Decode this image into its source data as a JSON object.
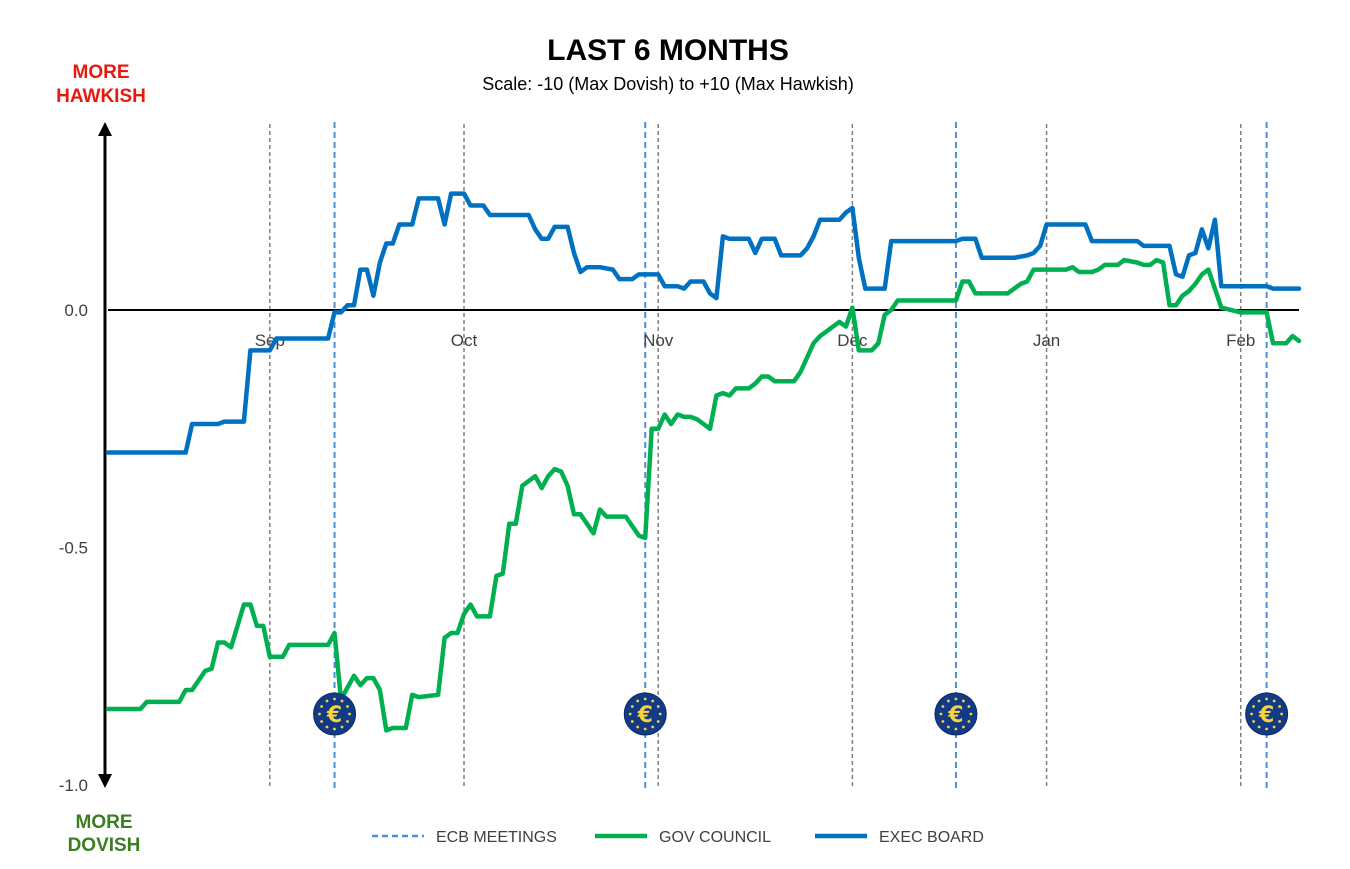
{
  "chart_data": {
    "type": "line",
    "title": "LAST 6 MONTHS",
    "subtitle": "Scale: -10 (Max Dovish)  to +10 (Max Hawkish)",
    "top_label": [
      "MORE",
      "HAWKISH"
    ],
    "bottom_label": [
      "MORE",
      "DOVISH"
    ],
    "colors": {
      "hawkish": "#e8190f",
      "dovish": "#3a7d22",
      "gov_council": "#00b050",
      "exec_board": "#0070c0",
      "ecb_meetings": "#4a90d9",
      "month_gridline": "#7f7f7f",
      "zero_line": "#000000"
    },
    "x_range": [
      0,
      184
    ],
    "ylim": [
      -1.0,
      0.4
    ],
    "y_ticks": [
      {
        "value": 0.0,
        "label": "0.0"
      },
      {
        "value": -0.5,
        "label": "-0.5"
      },
      {
        "value": -1.0,
        "label": "-1.0"
      }
    ],
    "month_ticks": [
      {
        "day": 25,
        "label": "Sep"
      },
      {
        "day": 55,
        "label": "Oct"
      },
      {
        "day": 85,
        "label": "Nov"
      },
      {
        "day": 115,
        "label": "Dec"
      },
      {
        "day": 145,
        "label": "Jan"
      },
      {
        "day": 175,
        "label": "Feb"
      }
    ],
    "ecb_meetings": [
      35,
      83,
      131,
      179
    ],
    "ecb_meeting_icon": "euro-coin-icon",
    "legend": [
      {
        "key": "ecb_meetings",
        "label": "ECB MEETINGS",
        "style": "dashed"
      },
      {
        "key": "gov_council",
        "label": "GOV COUNCIL",
        "style": "solid"
      },
      {
        "key": "exec_board",
        "label": "EXEC BOARD",
        "style": "solid"
      }
    ],
    "series": [
      {
        "key": "exec_board",
        "name": "EXEC BOARD",
        "points": [
          [
            0,
            -0.3
          ],
          [
            12,
            -0.3
          ],
          [
            13,
            -0.24
          ],
          [
            17,
            -0.24
          ],
          [
            18,
            -0.235
          ],
          [
            21,
            -0.235
          ],
          [
            22,
            -0.085
          ],
          [
            25,
            -0.085
          ],
          [
            26,
            -0.06
          ],
          [
            34,
            -0.06
          ],
          [
            35,
            -0.005
          ],
          [
            36,
            -0.005
          ],
          [
            37,
            0.01
          ],
          [
            38,
            0.01
          ],
          [
            39,
            0.085
          ],
          [
            40,
            0.085
          ],
          [
            41,
            0.03
          ],
          [
            42,
            0.1
          ],
          [
            43,
            0.14
          ],
          [
            44,
            0.14
          ],
          [
            45,
            0.18
          ],
          [
            47,
            0.18
          ],
          [
            48,
            0.235
          ],
          [
            51,
            0.235
          ],
          [
            52,
            0.18
          ],
          [
            53,
            0.245
          ],
          [
            55,
            0.245
          ],
          [
            56,
            0.22
          ],
          [
            58,
            0.22
          ],
          [
            59,
            0.2
          ],
          [
            65,
            0.2
          ],
          [
            66,
            0.17
          ],
          [
            67,
            0.15
          ],
          [
            68,
            0.15
          ],
          [
            69,
            0.175
          ],
          [
            71,
            0.175
          ],
          [
            72,
            0.12
          ],
          [
            73,
            0.08
          ],
          [
            74,
            0.09
          ],
          [
            76,
            0.09
          ],
          [
            78,
            0.085
          ],
          [
            79,
            0.065
          ],
          [
            81,
            0.065
          ],
          [
            82,
            0.075
          ],
          [
            85,
            0.075
          ],
          [
            86,
            0.05
          ],
          [
            88,
            0.05
          ],
          [
            89,
            0.045
          ],
          [
            90,
            0.06
          ],
          [
            92,
            0.06
          ],
          [
            93,
            0.035
          ],
          [
            94,
            0.025
          ],
          [
            95,
            0.155
          ],
          [
            96,
            0.15
          ],
          [
            99,
            0.15
          ],
          [
            100,
            0.12
          ],
          [
            101,
            0.15
          ],
          [
            103,
            0.15
          ],
          [
            104,
            0.115
          ],
          [
            107,
            0.115
          ],
          [
            108,
            0.13
          ],
          [
            109,
            0.155
          ],
          [
            110,
            0.19
          ],
          [
            113,
            0.19
          ],
          [
            114,
            0.205
          ],
          [
            115,
            0.215
          ],
          [
            116,
            0.11
          ],
          [
            117,
            0.045
          ],
          [
            120,
            0.045
          ],
          [
            121,
            0.145
          ],
          [
            131,
            0.145
          ],
          [
            132,
            0.15
          ],
          [
            134,
            0.15
          ],
          [
            135,
            0.11
          ],
          [
            140,
            0.11
          ],
          [
            142,
            0.115
          ],
          [
            143,
            0.12
          ],
          [
            144,
            0.135
          ],
          [
            145,
            0.18
          ],
          [
            151,
            0.18
          ],
          [
            152,
            0.145
          ],
          [
            159,
            0.145
          ],
          [
            160,
            0.135
          ],
          [
            164,
            0.135
          ],
          [
            165,
            0.075
          ],
          [
            166,
            0.07
          ],
          [
            167,
            0.115
          ],
          [
            168,
            0.12
          ],
          [
            169,
            0.17
          ],
          [
            170,
            0.13
          ],
          [
            171,
            0.19
          ],
          [
            172,
            0.05
          ],
          [
            179,
            0.05
          ],
          [
            180,
            0.045
          ],
          [
            184,
            0.045
          ]
        ]
      },
      {
        "key": "gov_council",
        "name": "GOV COUNCIL",
        "points": [
          [
            0,
            -0.84
          ],
          [
            5,
            -0.84
          ],
          [
            6,
            -0.825
          ],
          [
            11,
            -0.825
          ],
          [
            12,
            -0.8
          ],
          [
            13,
            -0.8
          ],
          [
            14,
            -0.78
          ],
          [
            15,
            -0.76
          ],
          [
            16,
            -0.755
          ],
          [
            17,
            -0.7
          ],
          [
            18,
            -0.7
          ],
          [
            19,
            -0.71
          ],
          [
            20,
            -0.665
          ],
          [
            21,
            -0.62
          ],
          [
            22,
            -0.62
          ],
          [
            23,
            -0.665
          ],
          [
            24,
            -0.665
          ],
          [
            25,
            -0.73
          ],
          [
            27,
            -0.73
          ],
          [
            28,
            -0.705
          ],
          [
            34,
            -0.705
          ],
          [
            35,
            -0.68
          ],
          [
            36,
            -0.82
          ],
          [
            37,
            -0.795
          ],
          [
            38,
            -0.77
          ],
          [
            39,
            -0.79
          ],
          [
            40,
            -0.775
          ],
          [
            41,
            -0.775
          ],
          [
            42,
            -0.8
          ],
          [
            43,
            -0.885
          ],
          [
            44,
            -0.88
          ],
          [
            46,
            -0.88
          ],
          [
            47,
            -0.81
          ],
          [
            48,
            -0.815
          ],
          [
            51,
            -0.81
          ],
          [
            52,
            -0.69
          ],
          [
            53,
            -0.68
          ],
          [
            54,
            -0.68
          ],
          [
            55,
            -0.64
          ],
          [
            56,
            -0.62
          ],
          [
            57,
            -0.645
          ],
          [
            59,
            -0.645
          ],
          [
            60,
            -0.56
          ],
          [
            61,
            -0.555
          ],
          [
            62,
            -0.45
          ],
          [
            63,
            -0.45
          ],
          [
            64,
            -0.37
          ],
          [
            65,
            -0.36
          ],
          [
            66,
            -0.35
          ],
          [
            67,
            -0.375
          ],
          [
            68,
            -0.35
          ],
          [
            69,
            -0.335
          ],
          [
            70,
            -0.34
          ],
          [
            71,
            -0.37
          ],
          [
            72,
            -0.43
          ],
          [
            73,
            -0.43
          ],
          [
            74,
            -0.45
          ],
          [
            75,
            -0.47
          ],
          [
            76,
            -0.42
          ],
          [
            77,
            -0.435
          ],
          [
            80,
            -0.435
          ],
          [
            81,
            -0.455
          ],
          [
            82,
            -0.475
          ],
          [
            83,
            -0.48
          ],
          [
            84,
            -0.25
          ],
          [
            85,
            -0.25
          ],
          [
            86,
            -0.22
          ],
          [
            87,
            -0.24
          ],
          [
            88,
            -0.22
          ],
          [
            89,
            -0.225
          ],
          [
            90,
            -0.225
          ],
          [
            91,
            -0.23
          ],
          [
            92,
            -0.24
          ],
          [
            93,
            -0.25
          ],
          [
            94,
            -0.18
          ],
          [
            95,
            -0.175
          ],
          [
            96,
            -0.18
          ],
          [
            97,
            -0.165
          ],
          [
            99,
            -0.165
          ],
          [
            100,
            -0.155
          ],
          [
            101,
            -0.14
          ],
          [
            102,
            -0.14
          ],
          [
            103,
            -0.15
          ],
          [
            106,
            -0.15
          ],
          [
            107,
            -0.13
          ],
          [
            108,
            -0.1
          ],
          [
            109,
            -0.07
          ],
          [
            110,
            -0.055
          ],
          [
            111,
            -0.045
          ],
          [
            112,
            -0.035
          ],
          [
            113,
            -0.025
          ],
          [
            114,
            -0.035
          ],
          [
            115,
            0.005
          ],
          [
            116,
            -0.085
          ],
          [
            117,
            -0.085
          ],
          [
            118,
            -0.085
          ],
          [
            119,
            -0.07
          ],
          [
            120,
            -0.01
          ],
          [
            121,
            0.0
          ],
          [
            122,
            0.02
          ],
          [
            131,
            0.02
          ],
          [
            132,
            0.06
          ],
          [
            133,
            0.06
          ],
          [
            134,
            0.035
          ],
          [
            139,
            0.035
          ],
          [
            140,
            0.045
          ],
          [
            141,
            0.055
          ],
          [
            142,
            0.06
          ],
          [
            143,
            0.085
          ],
          [
            148,
            0.085
          ],
          [
            149,
            0.09
          ],
          [
            150,
            0.08
          ],
          [
            152,
            0.08
          ],
          [
            153,
            0.085
          ],
          [
            154,
            0.095
          ],
          [
            156,
            0.095
          ],
          [
            157,
            0.105
          ],
          [
            159,
            0.1
          ],
          [
            160,
            0.095
          ],
          [
            161,
            0.095
          ],
          [
            162,
            0.105
          ],
          [
            163,
            0.1
          ],
          [
            164,
            0.01
          ],
          [
            165,
            0.01
          ],
          [
            166,
            0.03
          ],
          [
            167,
            0.04
          ],
          [
            168,
            0.055
          ],
          [
            169,
            0.075
          ],
          [
            170,
            0.085
          ],
          [
            171,
            0.045
          ],
          [
            172,
            0.005
          ],
          [
            175,
            -0.005
          ],
          [
            179,
            -0.005
          ],
          [
            180,
            -0.07
          ],
          [
            182,
            -0.07
          ],
          [
            183,
            -0.055
          ],
          [
            184,
            -0.065
          ]
        ]
      }
    ]
  }
}
